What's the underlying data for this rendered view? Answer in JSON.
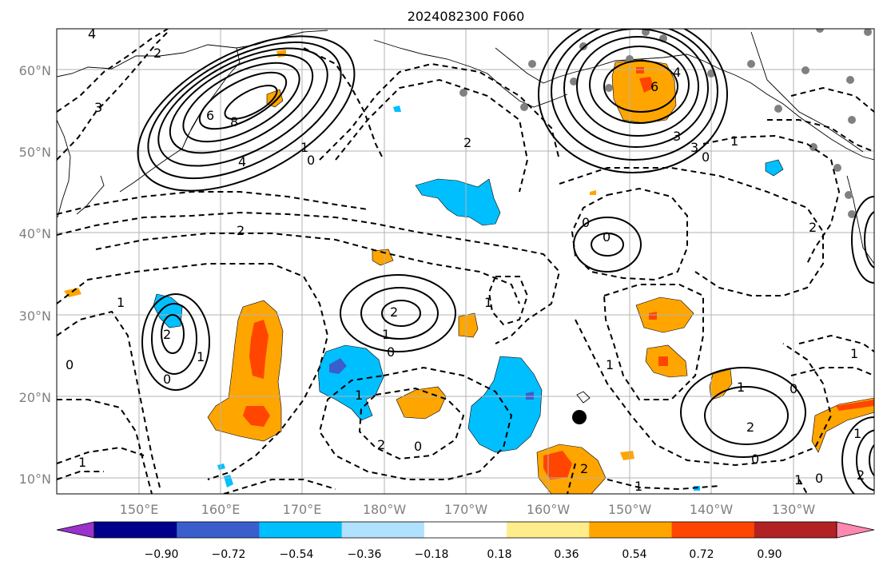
{
  "title": "2024082300 F060",
  "lat_labels": [
    "60°N",
    "50°N",
    "40°N",
    "30°N",
    "20°N",
    "10°N"
  ],
  "lon_labels": [
    "150°E",
    "160°E",
    "170°E",
    "180°W",
    "170°W",
    "160°W",
    "150°W",
    "140°W",
    "130°W"
  ],
  "colorbar": {
    "colors": [
      "#9933cc",
      "#00008b",
      "#3a5fcd",
      "#00bfff",
      "#b0e2ff",
      "#ffffff",
      "#ffec8b",
      "#ffa500",
      "#ff4500",
      "#b22222",
      "#ff88b0"
    ],
    "tick_labels": [
      "−0.90",
      "−0.72",
      "−0.54",
      "−0.36",
      "−0.18",
      "0.18",
      "0.36",
      "0.54",
      "0.72",
      "0.90"
    ]
  },
  "contour_labels": [
    "4",
    "2",
    "3",
    "6",
    "8",
    "4",
    "2",
    "0",
    "1",
    "2",
    "2",
    "1",
    "0",
    "1",
    "2",
    "1",
    "0",
    "1",
    "0",
    "0",
    "2",
    "1",
    "1",
    "2",
    "0",
    "3",
    "6",
    "4",
    "3",
    "0",
    "1",
    "0",
    "2",
    "1",
    "1",
    "0",
    "1",
    "2",
    "0",
    "1",
    "0",
    "1",
    "2",
    "1"
  ],
  "legend_colors": {
    "positive": "#ffa500",
    "strong_positive": "#ff4500",
    "negative": "#00bfff",
    "strong_negative": "#3a5fcd",
    "station": "#808080"
  }
}
